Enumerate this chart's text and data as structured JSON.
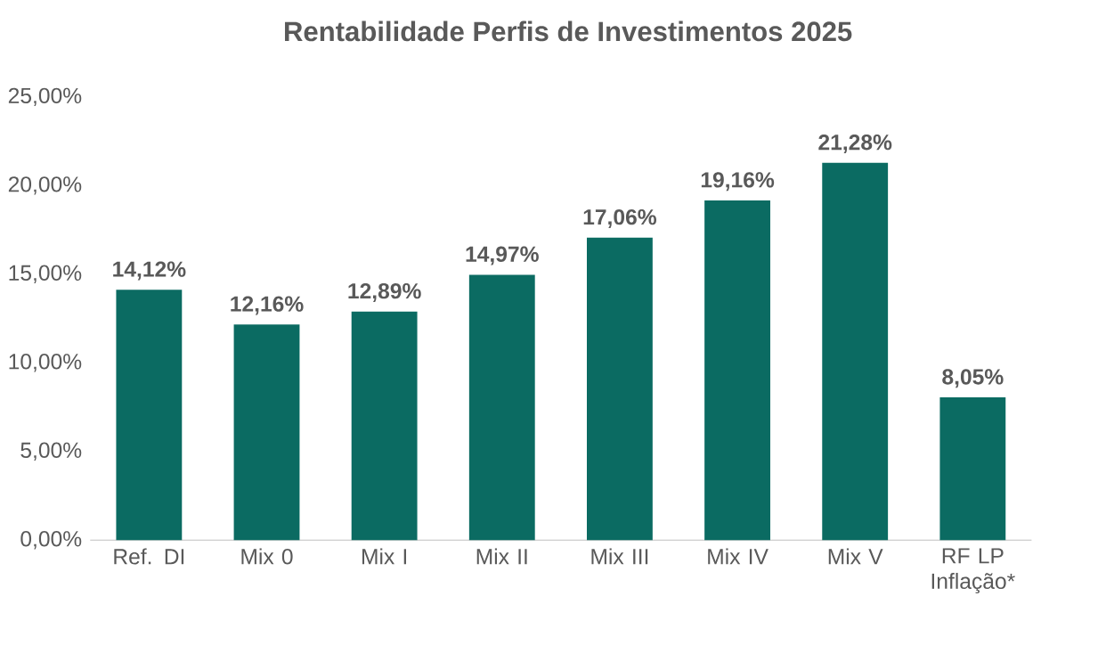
{
  "chart_data": {
    "type": "bar",
    "title": "Rentabilidade Perfis de Investimentos 2025",
    "categories": [
      "Ref. DI",
      "Mix 0",
      "Mix I",
      "Mix II",
      "Mix III",
      "Mix IV",
      "Mix V",
      "RF LP Inflação*"
    ],
    "values": [
      14.12,
      12.16,
      12.89,
      14.97,
      17.06,
      19.16,
      21.28,
      8.05
    ],
    "value_labels": [
      "14,12%",
      "12,16%",
      "12,89%",
      "14,97%",
      "17,06%",
      "19,16%",
      "21,28%",
      "8,05%"
    ],
    "color": "#0b6b62",
    "ylim": [
      0,
      25
    ],
    "yticks": [
      {
        "value": 0,
        "label": "0,00%"
      },
      {
        "value": 5,
        "label": "5,00%"
      },
      {
        "value": 10,
        "label": "10,00%"
      },
      {
        "value": 15,
        "label": "15,00%"
      },
      {
        "value": 20,
        "label": "20,00%"
      },
      {
        "value": 25,
        "label": "25,00%"
      }
    ]
  }
}
